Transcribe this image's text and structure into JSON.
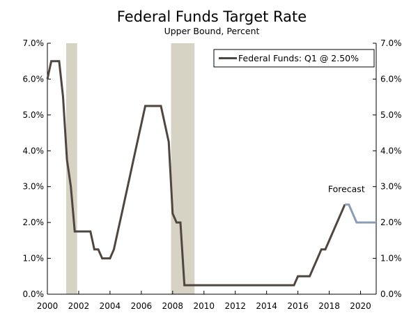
{
  "chart_data": {
    "type": "line",
    "title": "Federal Funds Target Rate",
    "subtitle": "Upper Bound, Percent",
    "xlabel": "",
    "ylabel": "",
    "xlim": [
      2000,
      2021
    ],
    "ylim": [
      0,
      7
    ],
    "x_ticks": [
      2000,
      2002,
      2004,
      2006,
      2008,
      2010,
      2012,
      2014,
      2016,
      2018,
      2020
    ],
    "y_ticks": [
      "0.0%",
      "1.0%",
      "2.0%",
      "3.0%",
      "4.0%",
      "5.0%",
      "6.0%",
      "7.0%"
    ],
    "y_tick_values": [
      0,
      1,
      2,
      3,
      4,
      5,
      6,
      7
    ],
    "grid": false,
    "legend": {
      "placement": "top-right",
      "label": "Federal Funds: Q1 @ 2.50%"
    },
    "annotations": [
      {
        "text": "Forecast",
        "x": 2019.1,
        "y": 2.85
      }
    ],
    "recessions": [
      [
        2001.2,
        2001.9
      ],
      [
        2007.9,
        2009.4
      ]
    ],
    "series": [
      {
        "name": "Federal Funds: Q1 @ 2.50%",
        "color": "#4f4640",
        "x": [
          2000.0,
          2000.25,
          2000.75,
          2001.0,
          2001.25,
          2001.5,
          2001.75,
          2002.0,
          2002.75,
          2003.0,
          2003.25,
          2003.5,
          2004.0,
          2004.25,
          2004.5,
          2004.75,
          2005.0,
          2005.25,
          2005.5,
          2005.75,
          2006.0,
          2006.25,
          2006.5,
          2007.25,
          2007.5,
          2007.75,
          2008.0,
          2008.25,
          2008.5,
          2008.75,
          2009.0,
          2015.75,
          2016.0,
          2016.75,
          2017.0,
          2017.25,
          2017.5,
          2017.75,
          2018.0,
          2018.25,
          2018.5,
          2018.75,
          2019.0
        ],
        "y": [
          6.0,
          6.5,
          6.5,
          5.5,
          3.75,
          3.0,
          1.75,
          1.75,
          1.75,
          1.25,
          1.25,
          1.0,
          1.0,
          1.25,
          1.75,
          2.25,
          2.75,
          3.25,
          3.75,
          4.25,
          4.75,
          5.25,
          5.25,
          5.25,
          4.75,
          4.25,
          2.25,
          2.0,
          2.0,
          0.25,
          0.25,
          0.25,
          0.5,
          0.5,
          0.75,
          1.0,
          1.25,
          1.25,
          1.5,
          1.75,
          2.0,
          2.25,
          2.5
        ]
      },
      {
        "name": "",
        "color": "#8a9db5",
        "x": [
          2019.0,
          2019.25,
          2019.5,
          2019.75,
          2020.0,
          2020.25,
          2020.5,
          2020.75,
          2021.0
        ],
        "y": [
          2.5,
          2.5,
          2.25,
          2.0,
          2.0,
          2.0,
          2.0,
          2.0,
          2.0
        ]
      }
    ]
  }
}
